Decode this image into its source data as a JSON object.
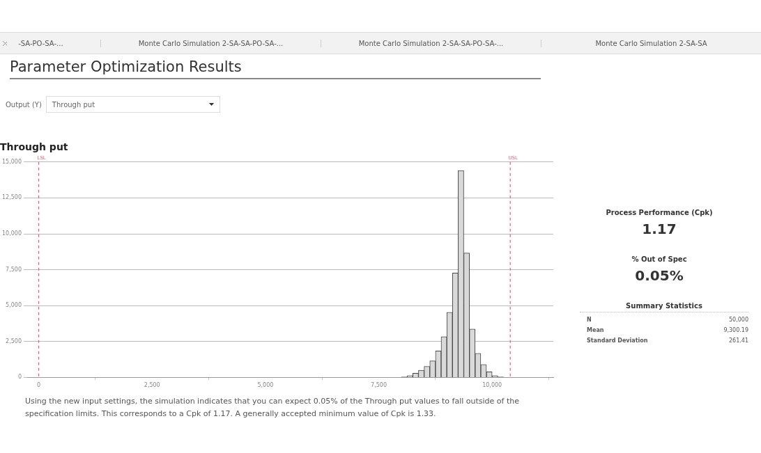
{
  "chart_data": [
    {
      "type": "other",
      "title": "Parameter Optimization Results",
      "annotations": [
        "-SA-PO-SA-...",
        "Monte Carlo Simulation 2-SA-SA-PO-SA-...",
        "Monte Carlo Simulation 2-SA-SA-PO-SA-...",
        "Monte Carlo Simulation 2-SA-SA",
        "Output (Y)",
        "Through put"
      ]
    },
    {
      "type": "histogram",
      "title": "Through put",
      "color": "#d9d9d9",
      "bins": [
        6500,
        6625,
        6750,
        6875,
        7000,
        7125,
        7250,
        7375,
        7500,
        7625,
        7750,
        7875,
        8000,
        8125,
        8250,
        8375,
        8500,
        8625,
        8750,
        8875,
        9000,
        9125,
        9250,
        9375,
        9500,
        9625,
        9750,
        9875,
        10000,
        10125,
        10250,
        10375,
        10500,
        10625,
        10750,
        10875,
        11000,
        11125
      ],
      "values": [
        0,
        0,
        0,
        0,
        0,
        0,
        0,
        0,
        0,
        0,
        0,
        0,
        40,
        130,
        290,
        500,
        770,
        1150,
        1840,
        2840,
        4530,
        7270,
        14400,
        8660,
        3370,
        1680,
        900,
        390,
        130,
        40,
        0,
        0,
        0,
        0,
        0,
        0,
        0
      ],
      "xlim": [
        -240,
        11350
      ],
      "ylim": [
        0,
        15000
      ],
      "xticks": [
        0,
        {
          "value": 2500,
          "label": "2,500"
        },
        {
          "value": 5000,
          "label": "5,000"
        },
        {
          "value": 7500,
          "label": "7,500"
        },
        {
          "value": 10000,
          "label": "10,000"
        }
      ],
      "yticks": [
        0,
        {
          "value": 2500,
          "label": "2,500"
        },
        {
          "value": 5000,
          "label": "5,000"
        },
        {
          "value": 7500,
          "label": "7,500"
        },
        {
          "value": 10000,
          "label": "10,000"
        },
        {
          "value": 12500,
          "label": "12,500"
        },
        {
          "value": 15000,
          "label": "15,000"
        }
      ],
      "grid": "y",
      "ref_lines": [
        {
          "axis": "x",
          "value": 0,
          "label": "LSL",
          "color": "#e06070",
          "line_style": "dashed"
        },
        {
          "axis": "x",
          "value": 10400,
          "label": "USL",
          "color": "#e06070",
          "line_style": "dashed"
        }
      ],
      "annotations": [
        "Using the new input settings, the simulation indicates that you can expect 0.05% of the Through put values to fall outside of the specification limits. This corresponds to a Cpk of 1.17. A generally accepted minimum value of Cpk is 1.33."
      ]
    },
    {
      "type": "other",
      "annotations": [
        "Process Performance (Cpk)",
        "1.17",
        "% Out of Spec",
        "0.05%",
        "Summary Statistics",
        "N",
        "50,000",
        "Mean",
        "9,300.19",
        "Standard Deviation",
        "261.41"
      ]
    }
  ]
}
